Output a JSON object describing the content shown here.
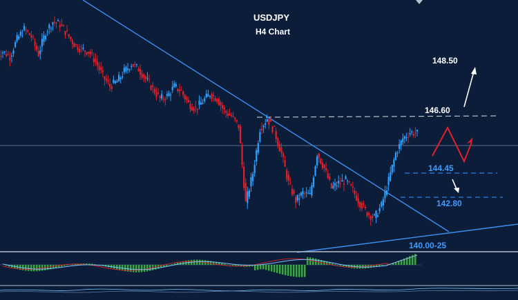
{
  "title": "USDJPY",
  "subtitle": "H4 Chart",
  "colors": {
    "background": "#0c1d3a",
    "bull": "#2fa0ff",
    "bear": "#e0202a",
    "trendline": "#3d8ff0",
    "support": "#2f7fe8",
    "resistance": "#b8c0cc",
    "label_white": "#ffffff",
    "label_blue": "#3f9bff",
    "path_red": "#e0202a",
    "osc_bar": "#3fa34a",
    "osc_line_a": "#c8242c",
    "osc_line_b": "#7fc3ff"
  },
  "levels": [
    {
      "label": "148.50",
      "style": "white"
    },
    {
      "label": "146.60",
      "style": "white"
    },
    {
      "label": "144.45",
      "style": "blue"
    },
    {
      "label": "142.80",
      "style": "blue"
    },
    {
      "label": "140.00-25",
      "style": "blue"
    }
  ],
  "chart_data": {
    "type": "candlestick",
    "title": "USDJPY",
    "subtitle": "H4 Chart",
    "candles_close_path": [
      147.7,
      147.5,
      148.2,
      148.6,
      148.3,
      147.6,
      148.5,
      148.9,
      148.8,
      148.4,
      148.0,
      147.8,
      147.7,
      147.3,
      146.7,
      146.3,
      146.5,
      146.9,
      147.2,
      147.0,
      146.6,
      146.2,
      145.8,
      145.9,
      146.3,
      146.1,
      145.6,
      145.4,
      145.7,
      146.0,
      145.8,
      145.3,
      145.1,
      144.7,
      141.6,
      142.8,
      144.6,
      145.0,
      144.5,
      143.6,
      142.4,
      141.7,
      142.0,
      141.9,
      143.6,
      143.0,
      142.2,
      142.4,
      142.5,
      142.1,
      141.6,
      141.2,
      141.0,
      141.5,
      142.5,
      143.6,
      144.2,
      144.45,
      144.4
    ],
    "annotations": [
      "148.50",
      "146.60",
      "144.45",
      "142.80",
      "140.00-25"
    ],
    "oscillator_pattern": "histogram"
  }
}
